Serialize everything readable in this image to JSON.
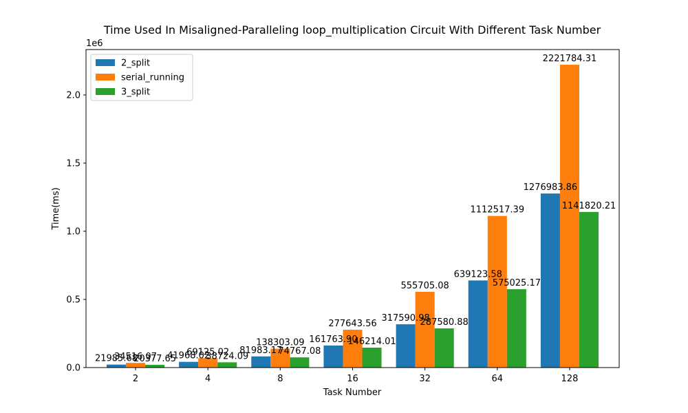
{
  "chart_data": {
    "type": "bar",
    "title": "Time Used In Misaligned-Paralleling loop_multiplication Circuit With Different Task Number",
    "xlabel": "Task Number",
    "ylabel": "Time(ms)",
    "y_offset_label": "1e6",
    "ylim": [
      0,
      2333000
    ],
    "y_ticks": [
      0,
      500000,
      1000000,
      1500000,
      2000000
    ],
    "y_tick_labels": [
      "0.0",
      "0.5",
      "1.0",
      "1.5",
      "2.0"
    ],
    "categories": [
      "2",
      "4",
      "8",
      "16",
      "32",
      "64",
      "128"
    ],
    "legend_position": "upper-left",
    "series": [
      {
        "name": "2_split",
        "color": "#1f77b4",
        "values": [
          21985.68,
          41968.02,
          81983.17,
          161763.9,
          317590.98,
          639123.58,
          1276983.86
        ],
        "labels": [
          "21985.68",
          "41968.02",
          "81983.17",
          "161763.90",
          "317590.98",
          "639123.58",
          "1276983.86"
        ]
      },
      {
        "name": "serial_running",
        "color": "#ff7f0e",
        "values": [
          34516.07,
          69125.02,
          138303.09,
          277643.56,
          555705.08,
          1112517.39,
          2221784.31
        ],
        "labels": [
          "34516.07",
          "69125.02",
          "138303.09",
          "277643.56",
          "555705.08",
          "1112517.39",
          "2221784.31"
        ]
      },
      {
        "name": "3_split",
        "color": "#2ca02c",
        "values": [
          20377.65,
          38724.09,
          74767.08,
          146214.01,
          287580.88,
          575025.17,
          1141820.21
        ],
        "labels": [
          "20377.65",
          "38724.09",
          "74767.08",
          "146214.01",
          "287580.88",
          "575025.17",
          "1141820.21"
        ]
      }
    ]
  }
}
